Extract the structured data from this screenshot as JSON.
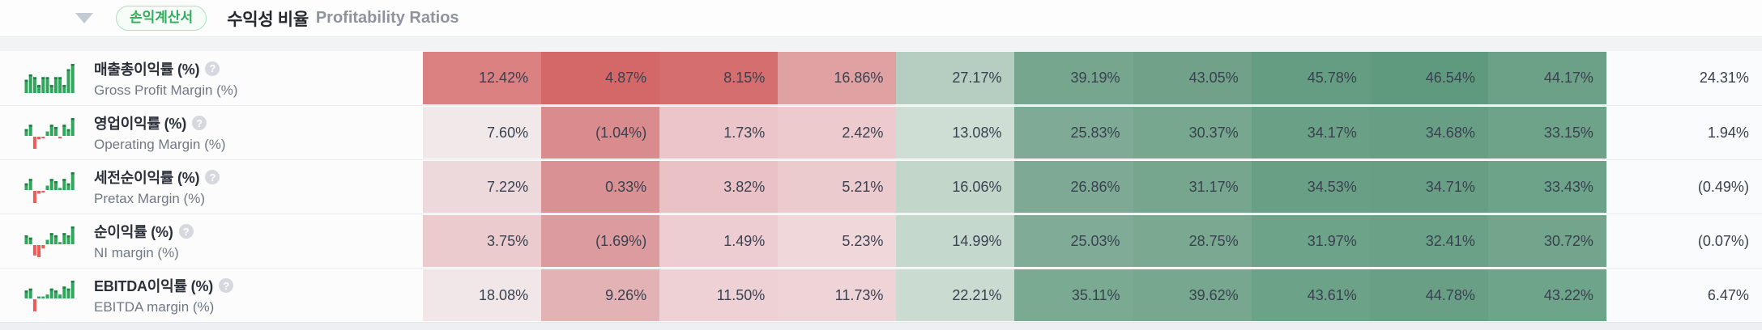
{
  "header": {
    "badge": "손익계산서",
    "title_ko": "수익성 비율",
    "title_en": "Profitability Ratios",
    "collapse_icon": "triangle-down",
    "help_icon_glyph": "?"
  },
  "colors": {
    "accent_green": "#2fae59",
    "badge_border": "#abe2bd",
    "badge_bg": "#f6fdf8",
    "spark_green": "#2fa65b",
    "spark_green_dark": "#18803f",
    "spark_red": "#ec5c56",
    "top_strip_gray": "#f1f3f5",
    "bottom_band_gray": "#edeff2",
    "last_column_bg": "#fafbfc",
    "cell_text": "#394150",
    "row_separator": "#eaedf0"
  },
  "table": {
    "rows": [
      {
        "label_ko": "매출총이익률 (%)",
        "label_en": "Gross Profit Margin (%)",
        "help_icon": "question-mark",
        "values": [
          "12.42%",
          "4.87%",
          "8.15%",
          "16.86%",
          "27.17%",
          "39.19%",
          "43.05%",
          "45.78%",
          "46.54%",
          "44.17%",
          "24.31%"
        ],
        "cell_colors": [
          "#DB8181",
          "#D46868",
          "#D56E6E",
          "#E0A1A3",
          "#B5CEC1",
          "#76A68E",
          "#71A289",
          "#659D82",
          "#609A7E",
          "#6CA187",
          null
        ],
        "sparkline": [
          5,
          7,
          6,
          3,
          6,
          6,
          3,
          6,
          6,
          3,
          9,
          11
        ]
      },
      {
        "label_ko": "영업이익률 (%)",
        "label_en": "Operating Margin (%)",
        "help_icon": "question-mark",
        "values": [
          "7.60%",
          "(1.04%)",
          "1.73%",
          "2.42%",
          "13.08%",
          "25.83%",
          "30.37%",
          "34.17%",
          "34.68%",
          "33.15%",
          "1.94%"
        ],
        "cell_colors": [
          "#F1E8E9",
          "#D98B8D",
          "#EBC5C9",
          "#ECCACD",
          "#CEDED5",
          "#7FAB96",
          "#77A78F",
          "#6AA086",
          "#679E84",
          "#6EA38A",
          null
        ],
        "sparkline": [
          3,
          5,
          -9,
          -2,
          -1,
          2,
          5,
          4,
          -1,
          5,
          3,
          8
        ]
      },
      {
        "label_ko": "세전순이익률 (%)",
        "label_en": "Pretax Margin (%)",
        "help_icon": "question-mark",
        "values": [
          "7.22%",
          "0.33%",
          "3.82%",
          "5.21%",
          "16.06%",
          "26.86%",
          "31.17%",
          "34.53%",
          "34.71%",
          "33.43%",
          "(0.49%)"
        ],
        "cell_colors": [
          "#EDD9DC",
          "#DA9193",
          "#EAC2C6",
          "#EBCBCE",
          "#C2D6CA",
          "#7EAA95",
          "#76A68E",
          "#699F85",
          "#689E84",
          "#6DA389",
          null
        ],
        "sparkline": [
          3,
          5,
          -9,
          -2,
          -1,
          2,
          5,
          4,
          1,
          5,
          3,
          8
        ]
      },
      {
        "label_ko": "순이익률 (%)",
        "label_en": "NI margin (%)",
        "help_icon": "question-mark",
        "values": [
          "3.75%",
          "(1.69%)",
          "1.49%",
          "5.23%",
          "14.99%",
          "25.03%",
          "28.75%",
          "31.97%",
          "32.41%",
          "30.72%",
          "(0.07%)"
        ],
        "cell_colors": [
          "#ECCBCE",
          "#DC9B9E",
          "#EDCDD1",
          "#F0D7DA",
          "#C5D8CD",
          "#80AC97",
          "#7AA891",
          "#6DA389",
          "#6BA187",
          "#73A58C",
          null
        ],
        "sparkline": [
          4,
          3,
          -6,
          -7,
          -2,
          2,
          5,
          4,
          1,
          5,
          4,
          8
        ]
      },
      {
        "label_ko": "EBITDA이익률 (%)",
        "label_en": "EBITDA margin (%)",
        "help_icon": "question-mark",
        "values": [
          "18.08%",
          "9.26%",
          "11.50%",
          "11.73%",
          "22.21%",
          "35.11%",
          "39.62%",
          "43.61%",
          "44.78%",
          "43.22%",
          "6.47%"
        ],
        "cell_colors": [
          "#F1E6E8",
          "#E3B2B5",
          "#EDD1D4",
          "#EED4D7",
          "#CADCD2",
          "#7BAA92",
          "#77A78F",
          "#6CA288",
          "#689F85",
          "#6EA48A",
          null
        ],
        "sparkline": [
          4,
          5,
          -6,
          1,
          1,
          2,
          5,
          4,
          2,
          6,
          5,
          9
        ]
      }
    ]
  }
}
